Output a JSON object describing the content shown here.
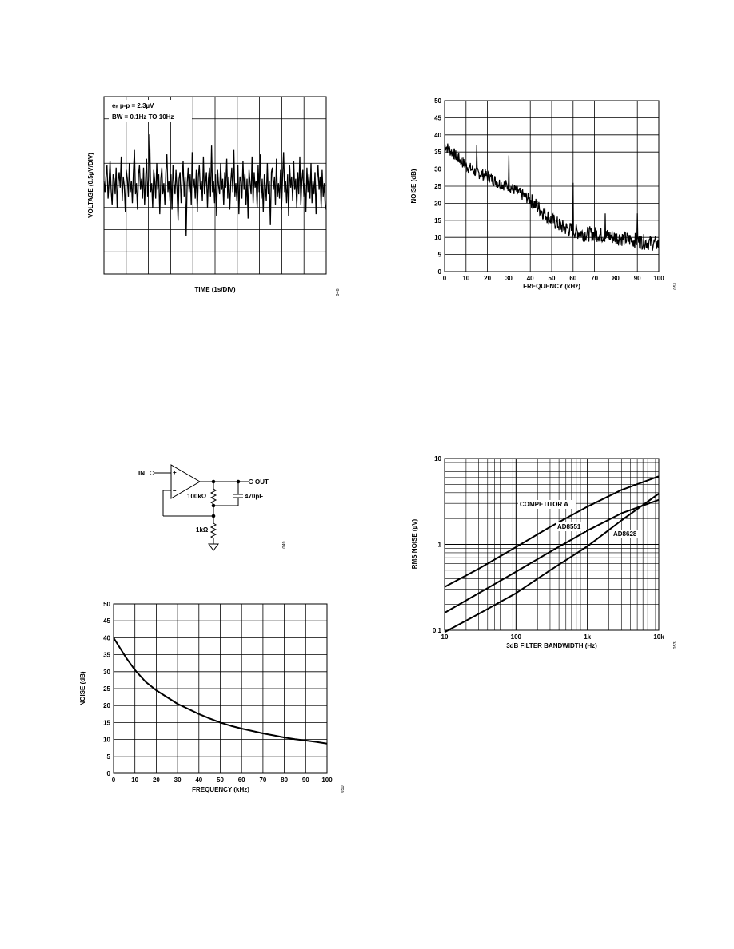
{
  "chart_data": [
    {
      "id": "noise_time",
      "type": "line",
      "xlabel": "TIME (1s/DIV)",
      "ylabel": "VOLTAGE (0.5µV/DIV)",
      "annotation": [
        "eₙ p-p = 2.3µV",
        "BW = 0.1Hz TO 10Hz"
      ],
      "x_divisions": 10,
      "y_divisions": 8,
      "ylim_divisions": [
        -4,
        4
      ],
      "grid": true,
      "figure_number": "048",
      "series": [
        {
          "values": [
            0.2,
            -0.3,
            0.4,
            0.9,
            -0.6,
            0.1,
            1.1,
            -0.2,
            -0.9,
            0.5,
            0.3,
            -0.4,
            0.8,
            -1.0,
            0.2,
            0.6,
            -0.1,
            1.3,
            -0.7,
            0.4,
            0.0,
            -1.2,
            0.7,
            0.3,
            -0.5,
            1.0,
            -0.3,
            0.2,
            -0.8,
            0.6,
            1.6,
            -0.4,
            0.1,
            -1.1,
            0.5,
            0.9,
            -0.2,
            0.3,
            -0.6,
            0.8,
            -0.9,
            0.2,
            1.2,
            -0.5,
            0.4,
            2.3,
            -0.3,
            0.1,
            -1.0,
            0.7,
            0.2,
            -0.6,
            1.0,
            -0.2,
            0.5,
            -1.3,
            0.3,
            0.8,
            -0.4,
            0.1,
            -0.9,
            0.6,
            1.4,
            -0.3,
            0.2,
            -0.7,
            0.5,
            -1.1,
            0.9,
            0.1,
            -0.4,
            0.7,
            -0.2,
            -1.6,
            0.3,
            0.6,
            -0.8,
            0.2,
            1.1,
            -0.5,
            0.4,
            -2.3,
            0.1,
            0.8,
            -0.3,
            0.5,
            -0.9,
            1.5,
            -0.1,
            0.3,
            -0.6,
            0.7,
            -1.2,
            0.4,
            0.9,
            -0.2,
            0.2,
            -0.7,
            1.3,
            -0.4,
            0.1,
            0.6,
            -1.0,
            0.3,
            0.8,
            -0.5,
            1.8,
            -0.3,
            0.2,
            -0.8,
            0.5,
            -1.4,
            0.7,
            0.0,
            -0.4,
            1.0,
            -0.2,
            0.3,
            -0.9,
            0.6,
            -0.1,
            1.2,
            -0.6,
            0.4,
            -1.1,
            0.2,
            0.8,
            -0.3,
            1.6,
            -0.5,
            0.1,
            -0.7,
            0.9,
            -1.3,
            0.4,
            0.2,
            -0.6,
            1.1,
            -0.2,
            0.5,
            -0.9,
            0.3,
            -1.5,
            0.7,
            0.1,
            -0.4,
            1.3,
            -0.8,
            0.6,
            -0.1,
            0.2,
            -1.0,
            0.9,
            -0.3,
            1.4,
            -0.6,
            0.3,
            -1.2,
            0.5,
            0.0,
            -0.7,
            1.0,
            -0.4,
            0.2,
            -1.8,
            0.6,
            0.8,
            -0.2,
            0.4,
            -0.9,
            1.2,
            -0.5,
            0.1,
            -0.6,
            0.7,
            -1.1,
            0.3,
            1.5,
            -0.3,
            0.2,
            -0.8,
            0.5,
            -1.4,
            0.9,
            -0.1,
            0.4,
            -0.7,
            1.1,
            -0.2,
            0.3,
            -1.0,
            0.6,
            -0.4,
            1.3,
            -0.9,
            0.2,
            0.7,
            -0.5,
            0.1,
            -1.2,
            0.8,
            -0.3,
            0.5,
            -0.6,
            1.0,
            -0.8,
            0.2,
            -0.4,
            0.6,
            -1.3,
            0.3,
            0.9,
            -0.2,
            0.4,
            -1.0,
            0.7,
            -0.5,
            0.1,
            -0.9,
            -1.1
          ]
        }
      ]
    },
    {
      "id": "noise_vs_freq_1",
      "type": "line",
      "xlabel": "FREQUENCY (kHz)",
      "ylabel": "NOISE (dB)",
      "xlim": [
        0,
        100
      ],
      "ylim": [
        0,
        50
      ],
      "xticks": [
        "0",
        "10",
        "20",
        "30",
        "40",
        "50",
        "60",
        "70",
        "80",
        "90",
        "100"
      ],
      "yticks": [
        "0",
        "5",
        "10",
        "15",
        "20",
        "25",
        "30",
        "35",
        "40",
        "45",
        "50"
      ],
      "grid": true,
      "figure_number": "051",
      "trend": {
        "x": [
          0,
          5,
          10,
          15,
          20,
          25,
          30,
          35,
          40,
          45,
          50,
          55,
          60,
          65,
          70,
          75,
          80,
          85,
          90,
          95,
          100
        ],
        "y": [
          37,
          34,
          31,
          29,
          28,
          26,
          25,
          23,
          21,
          18,
          15,
          13,
          12,
          11,
          11,
          10.5,
          10,
          9.5,
          9,
          8.5,
          8
        ]
      },
      "spikes": {
        "x": [
          15,
          30,
          60,
          75,
          90
        ],
        "y": [
          37,
          34,
          26,
          17,
          17
        ]
      }
    },
    {
      "id": "noise_vs_freq_2",
      "type": "line",
      "xlabel": "FREQUENCY (kHz)",
      "ylabel": "NOISE (dB)",
      "xlim": [
        0,
        100
      ],
      "ylim": [
        0,
        50
      ],
      "xticks": [
        "0",
        "10",
        "20",
        "30",
        "40",
        "50",
        "60",
        "70",
        "80",
        "90",
        "100"
      ],
      "yticks": [
        "0",
        "5",
        "10",
        "15",
        "20",
        "25",
        "30",
        "35",
        "40",
        "45",
        "50"
      ],
      "grid": true,
      "figure_number": "050",
      "series": [
        {
          "x": [
            0,
            3,
            6,
            10,
            15,
            20,
            25,
            30,
            35,
            40,
            45,
            50,
            55,
            60,
            65,
            70,
            75,
            80,
            85,
            90,
            95,
            100
          ],
          "y": [
            40,
            37,
            34,
            30.5,
            27,
            24.5,
            22.5,
            20.5,
            19,
            17.5,
            16.2,
            15,
            14,
            13.2,
            12.5,
            11.8,
            11.2,
            10.6,
            10.1,
            9.7,
            9.3,
            8.8
          ]
        }
      ]
    },
    {
      "id": "rms_noise",
      "type": "line",
      "xlabel": "3dB FILTER BANDWIDTH (Hz)",
      "ylabel": "RMS NOISE (µV)",
      "xscale": "log",
      "yscale": "log",
      "xlim": [
        10,
        10000
      ],
      "ylim": [
        0.1,
        10
      ],
      "xticks": [
        "10",
        "100",
        "1k",
        "10k"
      ],
      "yticks": [
        "0.1",
        "1",
        "10"
      ],
      "grid": true,
      "figure_number": "053",
      "series": [
        {
          "name": "COMPETITOR A",
          "x": [
            10,
            30,
            100,
            300,
            1000,
            3000,
            10000
          ],
          "y": [
            0.32,
            0.52,
            0.93,
            1.6,
            2.75,
            4.3,
            6.2
          ]
        },
        {
          "name": "AD8551",
          "x": [
            10,
            30,
            100,
            300,
            1000,
            3000,
            10000
          ],
          "y": [
            0.16,
            0.27,
            0.48,
            0.82,
            1.45,
            2.3,
            3.3
          ]
        },
        {
          "name": "AD8628",
          "x": [
            10,
            30,
            100,
            300,
            1000,
            3000,
            10000
          ],
          "y": [
            0.095,
            0.155,
            0.27,
            0.5,
            0.95,
            1.9,
            3.9
          ]
        }
      ]
    }
  ],
  "circuit": {
    "in_label": "IN",
    "out_label": "OUT",
    "plus": "+",
    "minus": "–",
    "r_feedback": "100kΩ",
    "capacitor": "470pF",
    "r_ground": "1kΩ",
    "figure_number": "049"
  }
}
